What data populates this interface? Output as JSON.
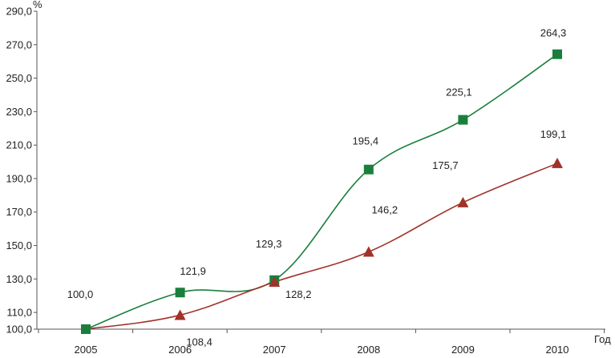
{
  "chart_data": {
    "type": "line",
    "xlabel": "Год",
    "ylabel": "%",
    "ylim": [
      100,
      290
    ],
    "y_ticks": [
      "100,0",
      "110,0",
      "130,0",
      "150,0",
      "170,0",
      "190,0",
      "210,0",
      "230,0",
      "250,0",
      "270,0",
      "290,0"
    ],
    "y_tick_values": [
      100,
      110,
      130,
      150,
      170,
      190,
      210,
      230,
      250,
      270,
      290
    ],
    "categories": [
      "2005",
      "2006",
      "2007",
      "2008",
      "2009",
      "2010"
    ],
    "grid": false,
    "series": [
      {
        "color": "#1a7f3c",
        "marker": "square",
        "values": [
          100.0,
          121.9,
          129.3,
          195.4,
          225.1,
          264.3
        ],
        "labels": [
          "100,0",
          "121,9",
          "129,3",
          "195,4",
          "225,1",
          "264,3"
        ]
      },
      {
        "color": "#a1322a",
        "marker": "triangle",
        "values": [
          100.0,
          108.4,
          128.2,
          146.2,
          175.7,
          199.1
        ],
        "labels": [
          "",
          "108,4",
          "128,2",
          "146,2",
          "175,7",
          "199,1"
        ]
      }
    ]
  }
}
